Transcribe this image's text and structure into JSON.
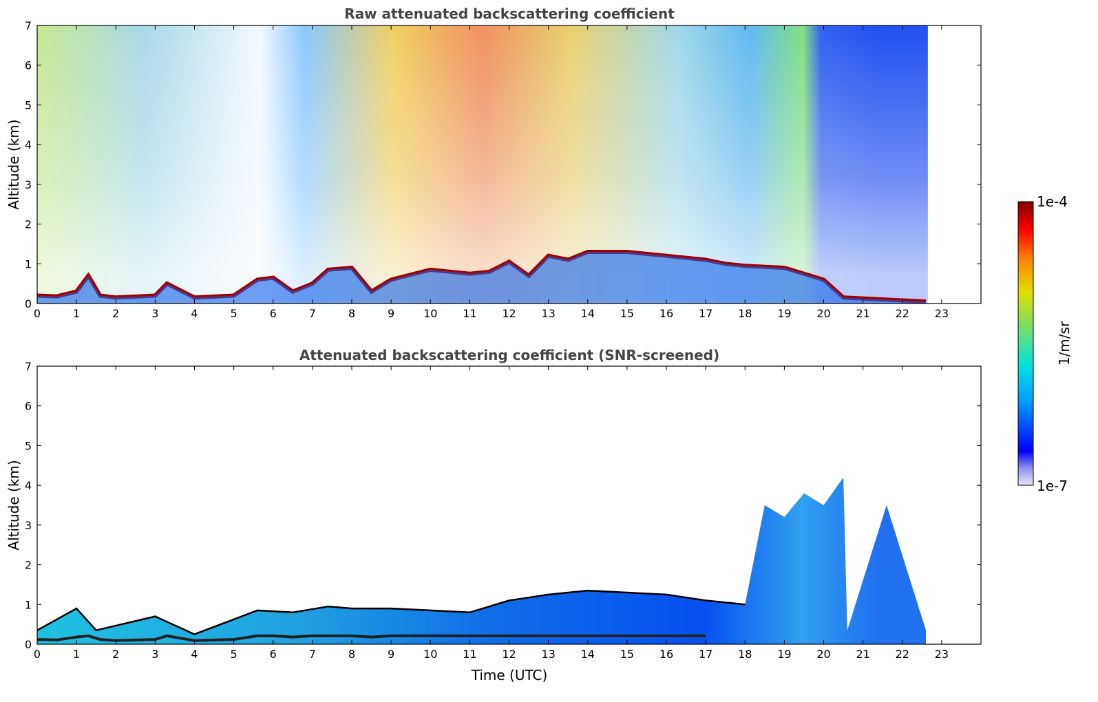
{
  "chart_data": [
    {
      "type": "heatmap",
      "title": "Raw attenuated backscattering coefficient",
      "xlabel": "",
      "ylabel": "Altitude (km)",
      "xlim": [
        0,
        24
      ],
      "ylim": [
        0,
        7
      ],
      "x_ticks": [
        "0",
        "1",
        "2",
        "3",
        "4",
        "5",
        "6",
        "7",
        "8",
        "9",
        "10",
        "11",
        "12",
        "13",
        "14",
        "15",
        "16",
        "17",
        "18",
        "19",
        "20",
        "21",
        "22",
        "23"
      ],
      "y_ticks": [
        "0",
        "1",
        "2",
        "3",
        "4",
        "5",
        "6",
        "7"
      ],
      "data_extent_hours": [
        0,
        22.65
      ],
      "boundary_layer_top_km": [
        [
          0,
          0.2
        ],
        [
          0.5,
          0.18
        ],
        [
          1,
          0.3
        ],
        [
          1.3,
          0.7
        ],
        [
          1.6,
          0.2
        ],
        [
          2,
          0.15
        ],
        [
          3,
          0.2
        ],
        [
          3.3,
          0.5
        ],
        [
          4,
          0.15
        ],
        [
          5,
          0.2
        ],
        [
          5.6,
          0.6
        ],
        [
          6,
          0.65
        ],
        [
          6.5,
          0.3
        ],
        [
          7,
          0.5
        ],
        [
          7.4,
          0.85
        ],
        [
          8,
          0.9
        ],
        [
          8.5,
          0.3
        ],
        [
          9,
          0.6
        ],
        [
          10,
          0.85
        ],
        [
          10.5,
          0.8
        ],
        [
          11,
          0.75
        ],
        [
          11.5,
          0.8
        ],
        [
          12,
          1.05
        ],
        [
          12.5,
          0.7
        ],
        [
          13,
          1.2
        ],
        [
          13.5,
          1.1
        ],
        [
          14,
          1.3
        ],
        [
          15,
          1.3
        ],
        [
          15.5,
          1.25
        ],
        [
          16,
          1.2
        ],
        [
          16.5,
          1.15
        ],
        [
          17,
          1.1
        ],
        [
          17.5,
          1.0
        ],
        [
          18,
          0.95
        ],
        [
          19,
          0.9
        ],
        [
          20,
          0.6
        ],
        [
          20.5,
          0.15
        ],
        [
          22.6,
          0.05
        ]
      ]
    },
    {
      "type": "heatmap",
      "title": "Attenuated backscattering coefficient (SNR-screened)",
      "xlabel": "Time (UTC)",
      "ylabel": "Altitude (km)",
      "xlim": [
        0,
        24
      ],
      "ylim": [
        0,
        7
      ],
      "x_ticks": [
        "0",
        "1",
        "2",
        "3",
        "4",
        "5",
        "6",
        "7",
        "8",
        "9",
        "10",
        "11",
        "12",
        "13",
        "14",
        "15",
        "16",
        "17",
        "18",
        "19",
        "20",
        "21",
        "22",
        "23"
      ],
      "y_ticks": [
        "0",
        "1",
        "2",
        "3",
        "4",
        "5",
        "6",
        "7"
      ],
      "data_extent_hours": [
        0,
        22.65
      ],
      "screened_signal_top_km": [
        [
          0,
          0.35
        ],
        [
          1,
          0.9
        ],
        [
          1.5,
          0.35
        ],
        [
          3,
          0.7
        ],
        [
          4,
          0.25
        ],
        [
          5.6,
          0.85
        ],
        [
          6.5,
          0.8
        ],
        [
          7.4,
          0.95
        ],
        [
          8,
          0.9
        ],
        [
          9,
          0.9
        ],
        [
          10,
          0.85
        ],
        [
          11,
          0.8
        ],
        [
          12,
          1.1
        ],
        [
          13,
          1.25
        ],
        [
          14,
          1.35
        ],
        [
          15,
          1.3
        ],
        [
          16,
          1.25
        ],
        [
          17,
          1.1
        ],
        [
          18,
          1.0
        ],
        [
          18.5,
          3.5
        ],
        [
          19,
          3.2
        ],
        [
          19.5,
          3.8
        ],
        [
          20,
          3.5
        ],
        [
          20.5,
          4.2
        ],
        [
          20.6,
          0.35
        ],
        [
          21.6,
          3.5
        ],
        [
          22.6,
          0.35
        ]
      ]
    }
  ],
  "colorbar": {
    "label": "1/m/sr",
    "max_label": "1e-4",
    "min_label": "1e-7",
    "scale": "log",
    "colormap": [
      "#e8e8f8",
      "#0000ff",
      "#00a0ff",
      "#00e0e0",
      "#70e070",
      "#e0e000",
      "#ff8000",
      "#ff0000",
      "#800000"
    ]
  }
}
